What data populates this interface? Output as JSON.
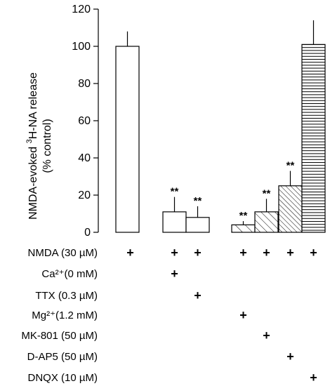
{
  "chart_data": {
    "type": "bar",
    "ylabel_line1": "NMDA-evoked ",
    "ylabel_sup": "3",
    "ylabel_line1_end": "H-NA release",
    "ylabel_line2": "(% control)",
    "ylim": [
      0,
      120
    ],
    "yticks": [
      "0",
      "20",
      "40",
      "60",
      "80",
      "100",
      "120"
    ],
    "bars": [
      {
        "value": 100,
        "error": 8,
        "significance": "",
        "pattern": "open"
      },
      {
        "value": 11,
        "error": 8,
        "significance": "**",
        "pattern": "open"
      },
      {
        "value": 8,
        "error": 6,
        "significance": "**",
        "pattern": "open"
      },
      {
        "value": 4,
        "error": 2,
        "significance": "**",
        "pattern": "hatch-sparse"
      },
      {
        "value": 11,
        "error": 7,
        "significance": "**",
        "pattern": "hatch-medium"
      },
      {
        "value": 25,
        "error": 8,
        "significance": "**",
        "pattern": "hatch-dense"
      },
      {
        "value": 101,
        "error": 13,
        "significance": "",
        "pattern": "horizontal"
      }
    ]
  },
  "conditions": [
    {
      "label": "NMDA (30 µM)",
      "marks": [
        true,
        true,
        true,
        true,
        true,
        true,
        true
      ]
    },
    {
      "label": "Ca²⁺(0 mM)",
      "marks": [
        false,
        true,
        false,
        false,
        false,
        false,
        false
      ]
    },
    {
      "label": "TTX (0.3 µM)",
      "marks": [
        false,
        false,
        true,
        false,
        false,
        false,
        false
      ]
    },
    {
      "label": "Mg²⁺(1.2 mM)",
      "marks": [
        false,
        false,
        false,
        true,
        false,
        false,
        false
      ]
    },
    {
      "label": "MK-801 (50 µM)",
      "marks": [
        false,
        false,
        false,
        false,
        true,
        false,
        false
      ]
    },
    {
      "label": "D-AP5 (50 µM)",
      "marks": [
        false,
        false,
        false,
        false,
        false,
        true,
        false
      ]
    },
    {
      "label": "DNQX (10 µM)",
      "marks": [
        false,
        false,
        false,
        false,
        false,
        false,
        true
      ]
    }
  ],
  "mark_symbol": "+"
}
